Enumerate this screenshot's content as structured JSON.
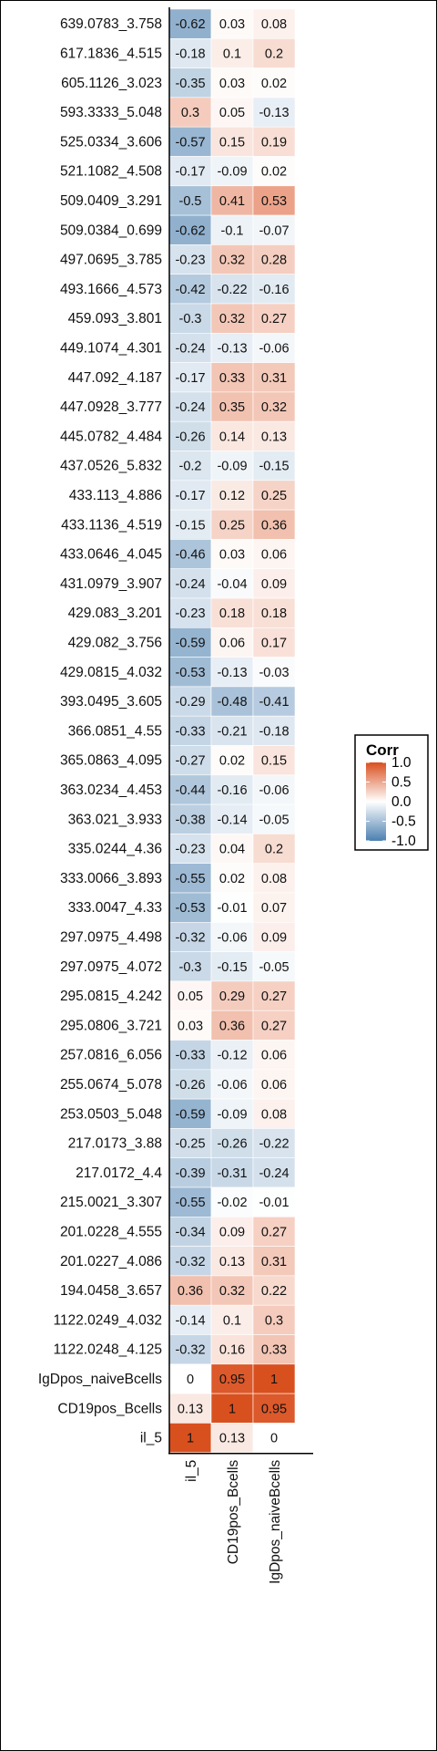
{
  "chart_data": {
    "type": "heatmap",
    "title": "",
    "xlabel": "",
    "ylabel": "",
    "columns": [
      "il_5",
      "CD19pos_Bcells",
      "IgDpos_naiveBcells"
    ],
    "rows": [
      "639.0783_3.758",
      "617.1836_4.515",
      "605.1126_3.023",
      "593.3333_5.048",
      "525.0334_3.606",
      "521.1082_4.508",
      "509.0409_3.291",
      "509.0384_0.699",
      "497.0695_3.785",
      "493.1666_4.573",
      "459.093_3.801",
      "449.1074_4.301",
      "447.092_4.187",
      "447.0928_3.777",
      "445.0782_4.484",
      "437.0526_5.832",
      "433.113_4.886",
      "433.1136_4.519",
      "433.0646_4.045",
      "431.0979_3.907",
      "429.083_3.201",
      "429.082_3.756",
      "429.0815_4.032",
      "393.0495_3.605",
      "366.0851_4.55",
      "365.0863_4.095",
      "363.0234_4.453",
      "363.021_3.933",
      "335.0244_4.36",
      "333.0066_3.893",
      "333.0047_4.33",
      "297.0975_4.498",
      "297.0975_4.072",
      "295.0815_4.242",
      "295.0806_3.721",
      "257.0816_6.056",
      "255.0674_5.078",
      "253.0503_5.048",
      "217.0173_3.88",
      "217.0172_4.4",
      "215.0021_3.307",
      "201.0228_4.555",
      "201.0227_4.086",
      "194.0458_3.657",
      "1122.0249_4.032",
      "1122.0248_4.125",
      "IgDpos_naiveBcells",
      "CD19pos_Bcells",
      "il_5"
    ],
    "values": [
      [
        -0.62,
        0.03,
        0.08
      ],
      [
        -0.18,
        0.1,
        0.2
      ],
      [
        -0.35,
        0.03,
        0.02
      ],
      [
        0.3,
        0.05,
        -0.13
      ],
      [
        -0.57,
        0.15,
        0.19
      ],
      [
        -0.17,
        -0.09,
        0.02
      ],
      [
        -0.5,
        0.41,
        0.53
      ],
      [
        -0.62,
        -0.1,
        -0.07
      ],
      [
        -0.23,
        0.32,
        0.28
      ],
      [
        -0.42,
        -0.22,
        -0.16
      ],
      [
        -0.3,
        0.32,
        0.27
      ],
      [
        -0.24,
        -0.13,
        -0.06
      ],
      [
        -0.17,
        0.33,
        0.31
      ],
      [
        -0.24,
        0.35,
        0.32
      ],
      [
        -0.26,
        0.14,
        0.13
      ],
      [
        -0.2,
        -0.09,
        -0.15
      ],
      [
        -0.17,
        0.12,
        0.25
      ],
      [
        -0.15,
        0.25,
        0.36
      ],
      [
        -0.46,
        0.03,
        0.06
      ],
      [
        -0.24,
        -0.04,
        0.09
      ],
      [
        -0.23,
        0.18,
        0.18
      ],
      [
        -0.59,
        0.06,
        0.17
      ],
      [
        -0.53,
        -0.13,
        -0.03
      ],
      [
        -0.29,
        -0.48,
        -0.41
      ],
      [
        -0.33,
        -0.21,
        -0.18
      ],
      [
        -0.27,
        0.02,
        0.15
      ],
      [
        -0.44,
        -0.16,
        -0.06
      ],
      [
        -0.38,
        -0.14,
        -0.05
      ],
      [
        -0.23,
        0.04,
        0.2
      ],
      [
        -0.55,
        0.02,
        0.08
      ],
      [
        -0.53,
        -0.01,
        0.07
      ],
      [
        -0.32,
        -0.06,
        0.09
      ],
      [
        -0.3,
        -0.15,
        -0.05
      ],
      [
        0.05,
        0.29,
        0.27
      ],
      [
        0.03,
        0.36,
        0.27
      ],
      [
        -0.33,
        -0.12,
        0.06
      ],
      [
        -0.26,
        -0.06,
        0.06
      ],
      [
        -0.59,
        -0.09,
        0.08
      ],
      [
        -0.25,
        -0.26,
        -0.22
      ],
      [
        -0.39,
        -0.31,
        -0.24
      ],
      [
        -0.55,
        -0.02,
        -0.01
      ],
      [
        -0.34,
        0.09,
        0.27
      ],
      [
        -0.32,
        0.13,
        0.31
      ],
      [
        0.36,
        0.32,
        0.22
      ],
      [
        -0.14,
        0.1,
        0.3
      ],
      [
        -0.32,
        0.16,
        0.33
      ],
      [
        0,
        0.95,
        1
      ],
      [
        0.13,
        1,
        0.95
      ],
      [
        1,
        0.13,
        0
      ]
    ],
    "color_scale": {
      "low": "#4C80B0",
      "mid": "#ffffff",
      "high": "#D9501F",
      "domain": [
        -1,
        1
      ]
    },
    "legend": {
      "title": "Corr",
      "ticks": [
        "1.0",
        "0.5",
        "0.0",
        "-0.5",
        "-1.0"
      ],
      "tick_values": [
        1,
        0.5,
        0,
        -0.5,
        -1
      ],
      "placement": "right"
    },
    "grid": false
  }
}
